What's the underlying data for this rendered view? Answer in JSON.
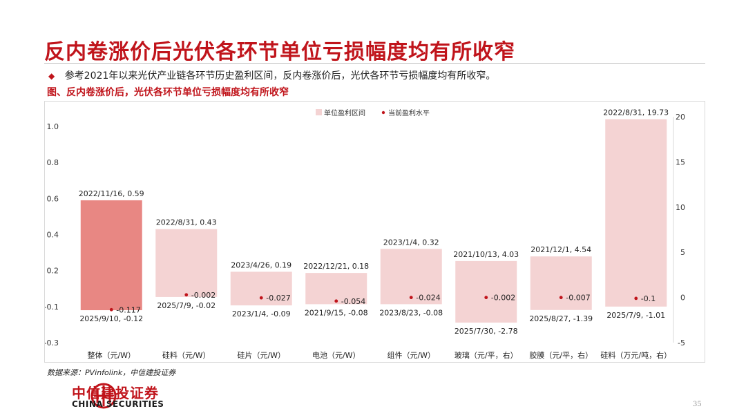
{
  "slide": {
    "title": "反内卷涨价后光伏各环节单位亏损幅度均有所收窄",
    "bullet": "参考2021年以来光伏产业链各环节历史盈利区间，反内卷涨价后，光伏各环节亏损幅度均有所收窄。",
    "figure_caption": "图、反内卷涨价后，光伏各环节单位亏损幅度均有所收窄",
    "source": "数据来源：PVinfolink，中信建投证券",
    "logo_cn": "中信建投证券",
    "logo_en": "CHINA SECURITIES",
    "page_number": "35"
  },
  "colors": {
    "brand_red": "#c0141b",
    "range_bar": "#f4d3d3",
    "highlight_bar": "#e88783",
    "point": "#c0141b"
  },
  "chart_data": {
    "type": "bar",
    "legend": [
      "单位盈利区间",
      "当前盈利水平"
    ],
    "legend_position": "top-right",
    "grid": false,
    "y_left": {
      "ticks": [
        1.0,
        0.8,
        0.6,
        0.4,
        0.2,
        -0.1,
        -0.3
      ],
      "tick_labels": [
        "1.0",
        "0.8",
        "0.6",
        "0.4",
        "0.2",
        "-0.1",
        "-0.3"
      ]
    },
    "y_right": {
      "min": -5,
      "max": 20,
      "ticks": [
        20,
        15,
        10,
        5,
        0,
        -5
      ],
      "tick_labels": [
        "20",
        "15",
        "10",
        "5",
        "0",
        "-5"
      ]
    },
    "categories": [
      "整体（元/W）",
      "硅料（元/W）",
      "硅片（元/W）",
      "电池（元/W）",
      "组件（元/W）",
      "玻璃（元/平，右）",
      "胶膜（元/平，右）",
      "硅料（万元/吨，右）"
    ],
    "bars": [
      {
        "axis": "left",
        "highlight": true,
        "top": 0.59,
        "bottom": -0.12,
        "current": -0.117,
        "top_label": "2022/11/16, 0.59",
        "bottom_label": "2025/9/10, -0.12",
        "current_label": "-0.117"
      },
      {
        "axis": "left",
        "highlight": false,
        "top": 0.43,
        "bottom": -0.02,
        "current": -0.002,
        "top_label": "2022/8/31, 0.43",
        "bottom_label": "2025/7/9, -0.02",
        "current_label": "-0.002"
      },
      {
        "axis": "left",
        "highlight": false,
        "top": 0.19,
        "bottom": -0.09,
        "current": -0.027,
        "top_label": "2023/4/26, 0.19",
        "bottom_label": "2023/1/4, -0.09",
        "current_label": "-0.027"
      },
      {
        "axis": "left",
        "highlight": false,
        "top": 0.18,
        "bottom": -0.08,
        "current": -0.054,
        "top_label": "2022/12/21, 0.18",
        "bottom_label": "2021/9/15, -0.08",
        "current_label": "-0.054"
      },
      {
        "axis": "left",
        "highlight": false,
        "top": 0.32,
        "bottom": -0.08,
        "current": -0.024,
        "top_label": "2023/1/4, 0.32",
        "bottom_label": "2023/8/23, -0.08",
        "current_label": "-0.024"
      },
      {
        "axis": "right",
        "highlight": false,
        "top": 4.03,
        "bottom": -2.78,
        "current": -0.002,
        "top_label": "2021/10/13, 4.03",
        "bottom_label": "2025/7/30, -2.78",
        "current_label": "-0.002"
      },
      {
        "axis": "right",
        "highlight": false,
        "top": 4.54,
        "bottom": -1.39,
        "current": -0.007,
        "top_label": "2021/12/1, 4.54",
        "bottom_label": "2025/8/27, -1.39",
        "current_label": "-0.007"
      },
      {
        "axis": "right",
        "highlight": false,
        "top": 19.73,
        "bottom": -1.01,
        "current": -0.1,
        "top_label": "2022/8/31, 19.73",
        "bottom_label": "2025/7/9, -1.01",
        "current_label": "-0.1"
      }
    ]
  }
}
